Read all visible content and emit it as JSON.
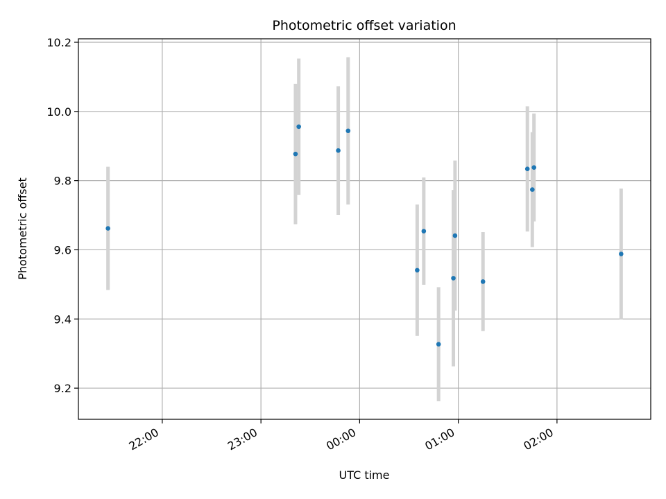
{
  "chart_data": {
    "type": "scatter",
    "title": "Photometric offset variation",
    "xlabel": "UTC time",
    "ylabel": "Photometric offset",
    "x_is_time": true,
    "xlim": [
      "21:09",
      "02:57"
    ],
    "ylim": [
      9.11,
      10.21
    ],
    "x_ticks": [
      "22:00",
      "23:00",
      "00:00",
      "01:00",
      "02:00"
    ],
    "y_ticks": [
      9.2,
      9.4,
      9.6,
      9.8,
      10.0,
      10.2
    ],
    "y_tick_labels": [
      "9.2",
      "9.4",
      "9.6",
      "9.8",
      "10.0",
      "10.2"
    ],
    "grid": true,
    "marker_color": "#1f77b4",
    "errorbar_color": "#d3d3d3",
    "points": [
      {
        "x": "21:27",
        "y": 9.662,
        "err": 0.178
      },
      {
        "x": "23:21",
        "y": 9.877,
        "err": 0.203
      },
      {
        "x": "23:23",
        "y": 9.956,
        "err": 0.197
      },
      {
        "x": "23:47",
        "y": 9.887,
        "err": 0.186
      },
      {
        "x": "23:53",
        "y": 9.944,
        "err": 0.213
      },
      {
        "x": "00:35",
        "y": 9.541,
        "err": 0.19
      },
      {
        "x": "00:39",
        "y": 9.654,
        "err": 0.155
      },
      {
        "x": "00:48",
        "y": 9.327,
        "err": 0.165
      },
      {
        "x": "00:57",
        "y": 9.518,
        "err": 0.255
      },
      {
        "x": "00:58",
        "y": 9.641,
        "err": 0.217
      },
      {
        "x": "01:15",
        "y": 9.508,
        "err": 0.143
      },
      {
        "x": "01:42",
        "y": 9.834,
        "err": 0.181
      },
      {
        "x": "01:45",
        "y": 9.774,
        "err": 0.166
      },
      {
        "x": "01:46",
        "y": 9.838,
        "err": 0.156
      },
      {
        "x": "02:39",
        "y": 9.588,
        "err": 0.189
      }
    ]
  }
}
